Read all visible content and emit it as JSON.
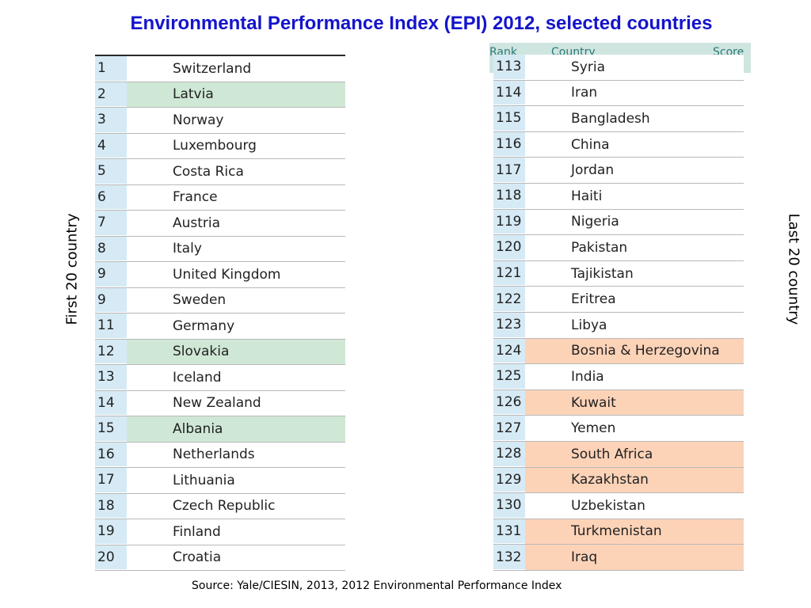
{
  "title": "Environmental Performance Index (EPI) 2012, selected countries",
  "left_label": "First 20 country",
  "right_label": "Last 20 country",
  "source": "Source: Yale/CIESIN, 2013, 2012 Environmental Performance Index",
  "right_header": {
    "rank": "Rank",
    "country": "Country",
    "score": "Score"
  },
  "colors": {
    "title": "#1414cc",
    "rank_bg": "#d6eaf5",
    "highlight_green": "#cfe8d5",
    "highlight_orange": "#fdd3b8"
  },
  "first20": [
    {
      "rank": "1",
      "country": "Switzerland",
      "highlight": ""
    },
    {
      "rank": "2",
      "country": "Latvia",
      "highlight": "green"
    },
    {
      "rank": "3",
      "country": "Norway",
      "highlight": ""
    },
    {
      "rank": "4",
      "country": "Luxembourg",
      "highlight": ""
    },
    {
      "rank": "5",
      "country": "Costa Rica",
      "highlight": ""
    },
    {
      "rank": "6",
      "country": "France",
      "highlight": ""
    },
    {
      "rank": "7",
      "country": "Austria",
      "highlight": ""
    },
    {
      "rank": "8",
      "country": "Italy",
      "highlight": ""
    },
    {
      "rank": "9",
      "country": "United Kingdom",
      "highlight": ""
    },
    {
      "rank": "9",
      "country": "Sweden",
      "highlight": ""
    },
    {
      "rank": "11",
      "country": "Germany",
      "highlight": ""
    },
    {
      "rank": "12",
      "country": "Slovakia",
      "highlight": "green"
    },
    {
      "rank": "13",
      "country": "Iceland",
      "highlight": ""
    },
    {
      "rank": "14",
      "country": "New Zealand",
      "highlight": ""
    },
    {
      "rank": "15",
      "country": "Albania",
      "highlight": "green"
    },
    {
      "rank": "16",
      "country": "Netherlands",
      "highlight": ""
    },
    {
      "rank": "17",
      "country": "Lithuania",
      "highlight": ""
    },
    {
      "rank": "18",
      "country": "Czech Republic",
      "highlight": ""
    },
    {
      "rank": "19",
      "country": "Finland",
      "highlight": ""
    },
    {
      "rank": "20",
      "country": "Croatia",
      "highlight": ""
    }
  ],
  "last20": [
    {
      "rank": "113",
      "country": "Syria",
      "highlight": ""
    },
    {
      "rank": "114",
      "country": "Iran",
      "highlight": ""
    },
    {
      "rank": "115",
      "country": "Bangladesh",
      "highlight": ""
    },
    {
      "rank": "116",
      "country": "China",
      "highlight": ""
    },
    {
      "rank": "117",
      "country": "Jordan",
      "highlight": ""
    },
    {
      "rank": "118",
      "country": "Haiti",
      "highlight": ""
    },
    {
      "rank": "119",
      "country": "Nigeria",
      "highlight": ""
    },
    {
      "rank": "120",
      "country": "Pakistan",
      "highlight": ""
    },
    {
      "rank": "121",
      "country": "Tajikistan",
      "highlight": ""
    },
    {
      "rank": "122",
      "country": "Eritrea",
      "highlight": ""
    },
    {
      "rank": "123",
      "country": "Libya",
      "highlight": ""
    },
    {
      "rank": "124",
      "country": "Bosnia & Herzegovina",
      "highlight": "orange"
    },
    {
      "rank": "125",
      "country": "India",
      "highlight": ""
    },
    {
      "rank": "126",
      "country": "Kuwait",
      "highlight": "orange"
    },
    {
      "rank": "127",
      "country": "Yemen",
      "highlight": ""
    },
    {
      "rank": "128",
      "country": "South Africa",
      "highlight": "orange"
    },
    {
      "rank": "129",
      "country": "Kazakhstan",
      "highlight": "orange"
    },
    {
      "rank": "130",
      "country": "Uzbekistan",
      "highlight": ""
    },
    {
      "rank": "131",
      "country": "Turkmenistan",
      "highlight": "orange"
    },
    {
      "rank": "132",
      "country": "Iraq",
      "highlight": "orange"
    }
  ]
}
